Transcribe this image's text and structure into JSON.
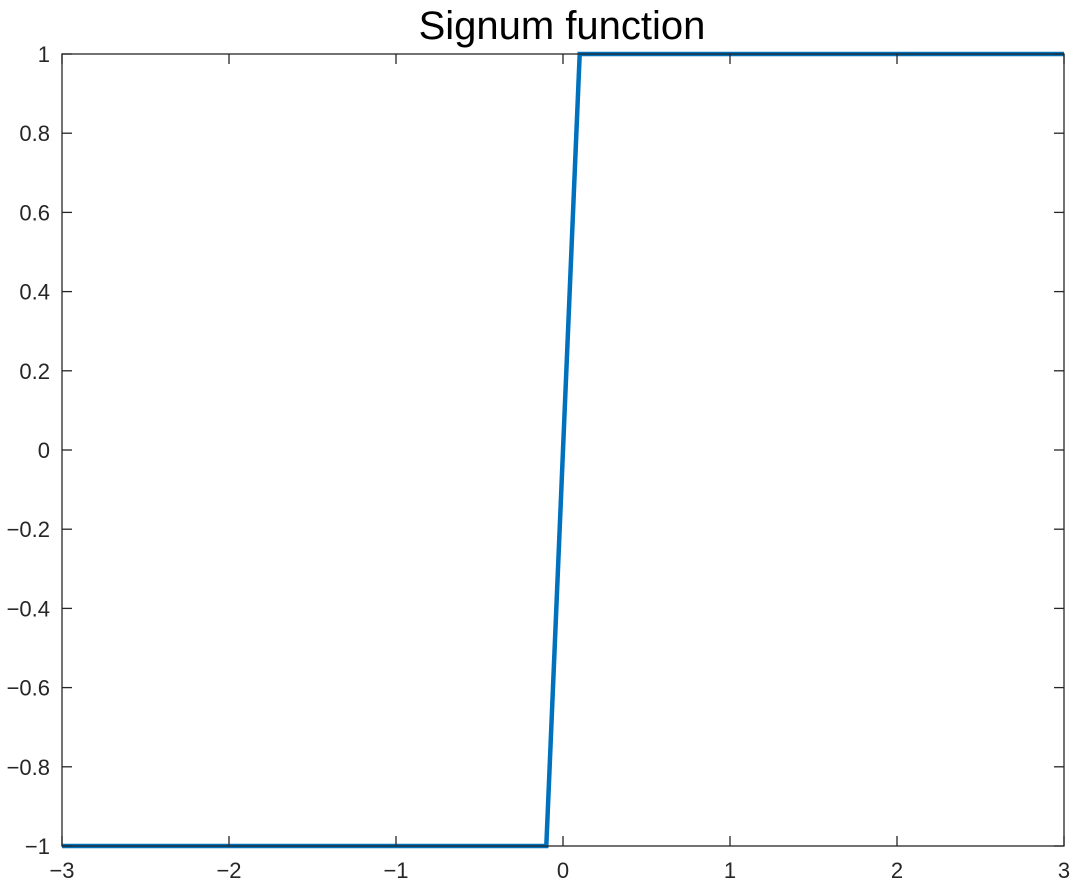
{
  "chart_data": {
    "type": "line",
    "title": "Signum function",
    "xlabel": "",
    "ylabel": "",
    "xlim": [
      -3,
      3
    ],
    "ylim": [
      -1,
      1
    ],
    "x_ticks": [
      -3,
      -2,
      -1,
      0,
      1,
      2,
      3
    ],
    "x_tick_labels": [
      "−3",
      "−2",
      "−1",
      "0",
      "1",
      "2",
      "3"
    ],
    "y_ticks": [
      -1,
      -0.8,
      -0.6,
      -0.4,
      -0.2,
      0,
      0.2,
      0.4,
      0.6,
      0.8,
      1
    ],
    "y_tick_labels": [
      "−1",
      "−0.8",
      "−0.6",
      "−0.4",
      "−0.2",
      "0",
      "0.2",
      "0.4",
      "0.6",
      "0.8",
      "1"
    ],
    "grid": false,
    "box": true,
    "series": [
      {
        "color": "#0072BD",
        "x": [
          -3,
          -0.1,
          0.1,
          3
        ],
        "y": [
          -1,
          -1,
          1,
          1
        ]
      }
    ]
  }
}
